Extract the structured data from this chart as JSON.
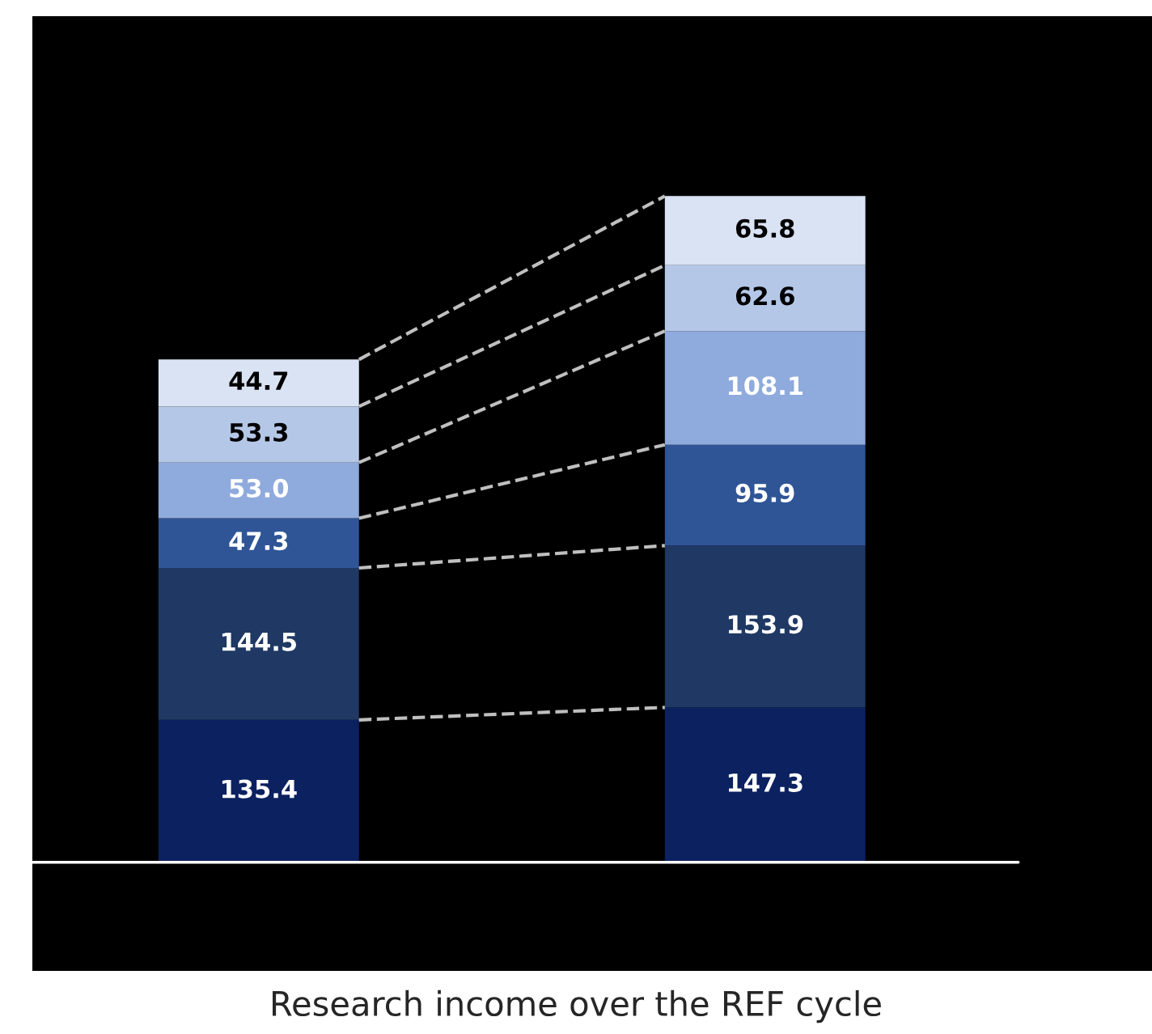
{
  "chart_data": {
    "type": "bar",
    "stacked": true,
    "title": "Research income over the REF cycle",
    "categories": [
      null,
      null
    ],
    "series": [
      {
        "color": "#0b2160",
        "values": [
          135.4,
          147.3
        ]
      },
      {
        "color": "#1f3864",
        "values": [
          144.5,
          153.9
        ]
      },
      {
        "color": "#2f5597",
        "values": [
          47.3,
          95.9
        ]
      },
      {
        "color": "#8faadc",
        "values": [
          53.0,
          108.1
        ],
        "value_labels": [
          "53.0",
          "108.1"
        ]
      },
      {
        "color": "#b4c7e7",
        "values": [
          53.3,
          62.6
        ]
      },
      {
        "color": "#dae3f3",
        "values": [
          44.7,
          65.8
        ]
      }
    ],
    "data_labels": true,
    "legend": false
  }
}
